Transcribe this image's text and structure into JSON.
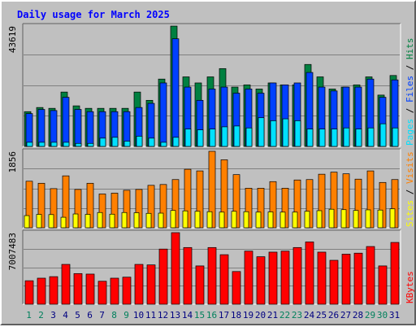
{
  "chart_data": {
    "type": "bar",
    "title": "Daily usage for March 2025",
    "categories": [
      "1",
      "2",
      "3",
      "4",
      "5",
      "6",
      "7",
      "8",
      "9",
      "10",
      "11",
      "12",
      "13",
      "14",
      "15",
      "16",
      "17",
      "18",
      "19",
      "20",
      "21",
      "22",
      "23",
      "24",
      "25",
      "26",
      "27",
      "28",
      "29",
      "30",
      "31"
    ],
    "weekend_days": [
      "1",
      "8",
      "15",
      "22",
      "29"
    ],
    "sunday_days": [
      "2",
      "9",
      "16",
      "23",
      "30"
    ],
    "top_panel": {
      "ymax_label": "43619",
      "ymax": 43619,
      "series": [
        {
          "name": "Hits",
          "values": [
            12600,
            14100,
            13800,
            19700,
            14700,
            13800,
            13800,
            13800,
            13800,
            19700,
            16700,
            24400,
            43600,
            25200,
            23000,
            25200,
            28200,
            21500,
            22300,
            20800,
            23000,
            22300,
            22300,
            29700,
            25200,
            20800,
            21500,
            22300,
            25200,
            18600,
            25700
          ]
        },
        {
          "name": "Files",
          "values": [
            11900,
            13400,
            13000,
            17800,
            13400,
            12600,
            12600,
            12600,
            12600,
            14100,
            15600,
            23000,
            39000,
            21500,
            16700,
            20800,
            21500,
            19300,
            20800,
            19300,
            23000,
            22300,
            23000,
            26800,
            21500,
            20100,
            21500,
            21500,
            24400,
            17800,
            24100
          ]
        },
        {
          "name": "Pages",
          "values": [
            1500,
            1500,
            1500,
            1500,
            1100,
            1100,
            3000,
            3300,
            1900,
            3700,
            3000,
            1500,
            3300,
            6300,
            6000,
            6300,
            7100,
            7400,
            6700,
            10400,
            9300,
            10000,
            9300,
            6300,
            6300,
            6300,
            6700,
            6300,
            6700,
            8200,
            6700
          ]
        }
      ]
    },
    "middle_panel": {
      "ymax_label": "1856",
      "ymax": 1856,
      "series": [
        {
          "name": "Visits",
          "values": [
            1130,
            1080,
            950,
            1260,
            930,
            1080,
            820,
            840,
            910,
            930,
            1030,
            1050,
            1170,
            1420,
            1380,
            1856,
            1650,
            1290,
            960,
            960,
            1120,
            960,
            1160,
            1170,
            1300,
            1350,
            1310,
            1180,
            1380,
            1100,
            1170
          ]
        },
        {
          "name": "Sites",
          "values": [
            295,
            325,
            320,
            255,
            335,
            325,
            370,
            330,
            370,
            365,
            350,
            355,
            420,
            410,
            400,
            390,
            380,
            400,
            390,
            380,
            385,
            380,
            380,
            400,
            415,
            450,
            440,
            420,
            435,
            430,
            460
          ]
        }
      ]
    },
    "bottom_panel": {
      "ymax_label": "7007483",
      "ymax": 7007483,
      "series": [
        {
          "name": "KBytes",
          "values": [
            2300000,
            2550000,
            2700000,
            3900000,
            3000000,
            2950000,
            2250000,
            2550000,
            2650000,
            3900000,
            3850000,
            5400000,
            7007483,
            5550000,
            3750000,
            5550000,
            4850000,
            3200000,
            5200000,
            4650000,
            5100000,
            5200000,
            5550000,
            6100000,
            5100000,
            4300000,
            4900000,
            5000000,
            5650000,
            3750000,
            6050000
          ]
        }
      ]
    },
    "grid": true,
    "legend_placement": "right-side, rotated"
  },
  "colors": {
    "hits": "#008040",
    "files": "#0040ff",
    "pages": "#00e0ff",
    "visits": "#ff8000",
    "sites": "#ffff00",
    "kbytes": "#ff0000",
    "title": "#0000ff",
    "day_weekend": "#00805c",
    "day_normal": "#000080"
  },
  "legend": {
    "top": [
      {
        "text": "Pages",
        "color_key": "pages"
      },
      {
        "text": "Files",
        "color_key": "files"
      },
      {
        "text": "Hits",
        "color_key": "hits"
      }
    ],
    "middle": [
      {
        "text": "Sites",
        "color_key": "sites"
      },
      {
        "text": "Visits",
        "color_key": "visits"
      }
    ],
    "bottom": [
      {
        "text": "KBytes",
        "color_key": "kbytes"
      }
    ]
  }
}
